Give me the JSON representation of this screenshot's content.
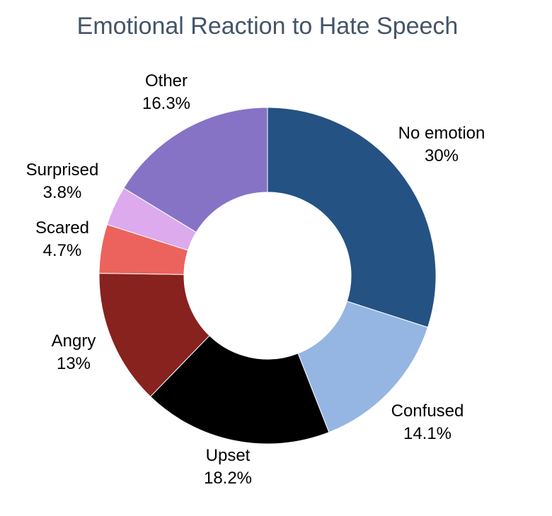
{
  "chart_data": {
    "type": "pie",
    "title": "Emotional Reaction to Hate Speech",
    "donut": true,
    "start_angle_deg": 0,
    "direction": "clockwise",
    "slices": [
      {
        "label": "No emotion",
        "value": 30,
        "display": "30%",
        "color": "#245283"
      },
      {
        "label": "Confused",
        "value": 14.1,
        "display": "14.1%",
        "color": "#95b6e3"
      },
      {
        "label": "Upset",
        "value": 18.2,
        "display": "18.2%",
        "color": "#000000"
      },
      {
        "label": "Angry",
        "value": 13,
        "display": "13%",
        "color": "#87221f"
      },
      {
        "label": "Scared",
        "value": 4.7,
        "display": "4.7%",
        "color": "#ec635d"
      },
      {
        "label": "Surprised",
        "value": 3.8,
        "display": "3.8%",
        "color": "#dcaaed"
      },
      {
        "label": "Other",
        "value": 16.3,
        "display": "16.3%",
        "color": "#8673c6"
      }
    ]
  }
}
